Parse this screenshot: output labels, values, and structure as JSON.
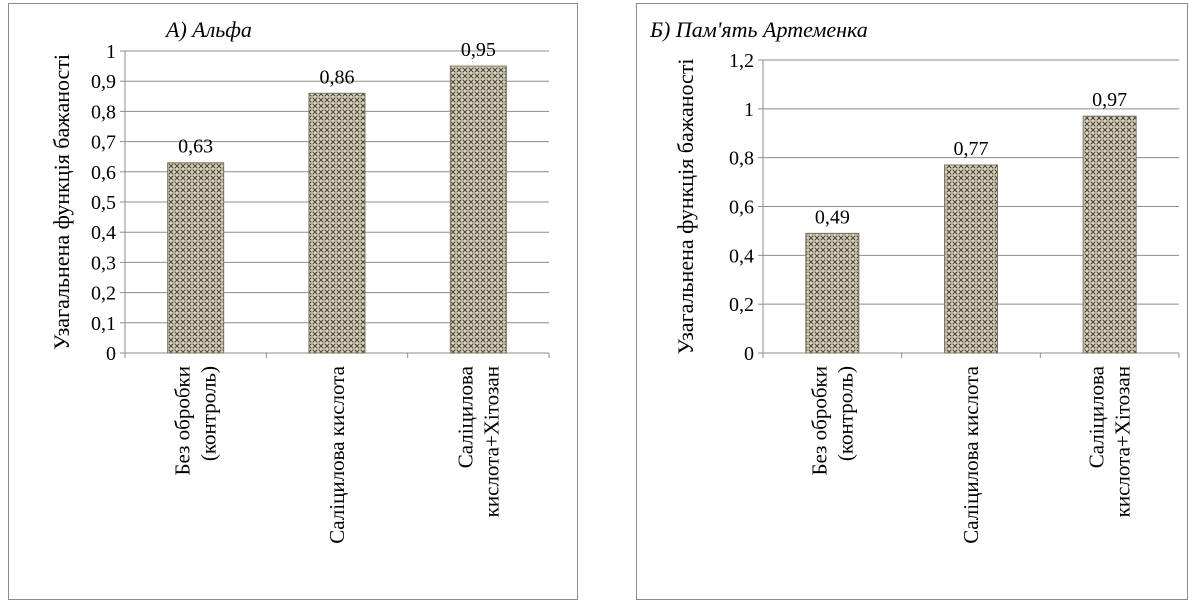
{
  "chart_data": [
    {
      "type": "bar",
      "title": "А) Альфа",
      "ylabel": "Узагальнена функція  бажаності",
      "xlabel": "",
      "categories": [
        [
          "Без обробки",
          "(контроль)"
        ],
        [
          "Саліцилова  кислота"
        ],
        [
          "Саліцилова",
          "кислота+Хітозан"
        ]
      ],
      "values": [
        0.63,
        0.86,
        0.95
      ],
      "data_labels": [
        "0,63",
        "0,86",
        "0,95"
      ],
      "ylim": [
        0,
        1
      ],
      "yticks": [
        0,
        0.1,
        0.2,
        0.3,
        0.4,
        0.5,
        0.6,
        0.7,
        0.8,
        0.9,
        1
      ],
      "ytick_labels": [
        "0",
        "0,1",
        "0,2",
        "0,3",
        "0,4",
        "0,5",
        "0,6",
        "0,7",
        "0,8",
        "0,9",
        "1"
      ],
      "grid": true,
      "legend": "none",
      "bar_pattern": "crosshatch-dots",
      "colors": {
        "bar_base": "#d9d2bd",
        "bar_pattern": "#4a4536",
        "grid": "#8c8c8c",
        "axis": "#8c8c8c"
      }
    },
    {
      "type": "bar",
      "title": "Б) Пам'ять Артеменка",
      "ylabel": "Узагальнена функція  бажаності",
      "xlabel": "",
      "categories": [
        [
          "Без обробки",
          "(контроль)"
        ],
        [
          "Саліцилова  кислота"
        ],
        [
          "Саліцилова",
          "кислота+Хітозан"
        ]
      ],
      "values": [
        0.49,
        0.77,
        0.97
      ],
      "data_labels": [
        "0,49",
        "0,77",
        "0,97"
      ],
      "ylim": [
        0,
        1.2
      ],
      "yticks": [
        0,
        0.2,
        0.4,
        0.6,
        0.8,
        1,
        1.2
      ],
      "ytick_labels": [
        "0",
        "0,2",
        "0,4",
        "0,6",
        "0,8",
        "1",
        "1,2"
      ],
      "grid": true,
      "legend": "none",
      "bar_pattern": "crosshatch-dots",
      "colors": {
        "bar_base": "#d9d2bd",
        "bar_pattern": "#4a4536",
        "grid": "#8c8c8c",
        "axis": "#8c8c8c"
      }
    }
  ]
}
